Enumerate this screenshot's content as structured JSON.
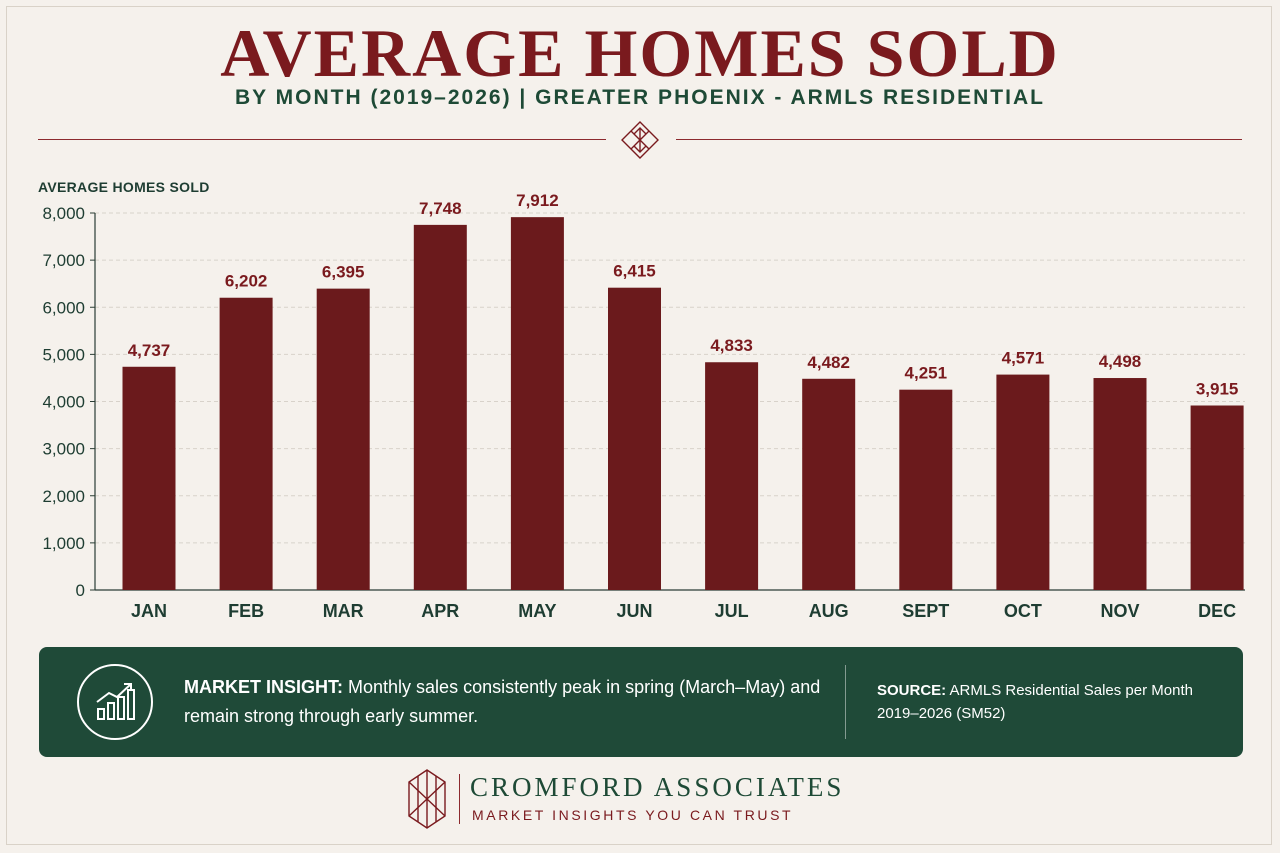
{
  "header": {
    "title": "AVERAGE HOMES SOLD",
    "subtitle": "BY MONTH (2019–2026) | GREATER PHOENIX - ARMLS RESIDENTIAL"
  },
  "chart_data": {
    "type": "bar",
    "ylabel": "AVERAGE HOMES SOLD",
    "categories": [
      "JAN",
      "FEB",
      "MAR",
      "APR",
      "MAY",
      "JUN",
      "JUL",
      "AUG",
      "SEPT",
      "OCT",
      "NOV",
      "DEC"
    ],
    "values": [
      4737,
      6202,
      6395,
      7748,
      7912,
      6415,
      4833,
      4482,
      4251,
      4571,
      4498,
      3915
    ],
    "value_labels": [
      "4,737",
      "6,202",
      "6,395",
      "7,748",
      "7,912",
      "6,415",
      "4,833",
      "4,482",
      "4,251",
      "4,571",
      "4,498",
      "3,915"
    ],
    "ylim": [
      0,
      8000
    ],
    "yticks": [
      0,
      1000,
      2000,
      3000,
      4000,
      5000,
      6000,
      7000,
      8000
    ],
    "ytick_labels": [
      "0",
      "1,000",
      "2,000",
      "3,000",
      "4,000",
      "5,000",
      "6,000",
      "7,000",
      "8,000"
    ],
    "grid": true,
    "colors": {
      "bar": "#6b1a1c",
      "value_label": "#7a1a1e",
      "axis_text": "#1e3d32"
    }
  },
  "insight": {
    "label": "MARKET INSIGHT:",
    "text": "Monthly sales consistently peak in spring (March–May) and remain strong through early summer.",
    "icon": "growth-chart-icon"
  },
  "source": {
    "label": "SOURCE:",
    "text": "ARMLS Residential Sales per Month 2019–2026 (SM52)"
  },
  "brand": {
    "name": "CROMFORD ASSOCIATES",
    "tagline": "MARKET INSIGHTS YOU CAN TRUST",
    "logo_icon": "cromford-logo-icon"
  },
  "theme": {
    "primary": "#7a1a1e",
    "secondary": "#1f4a38",
    "background": "#f5f1ec"
  }
}
